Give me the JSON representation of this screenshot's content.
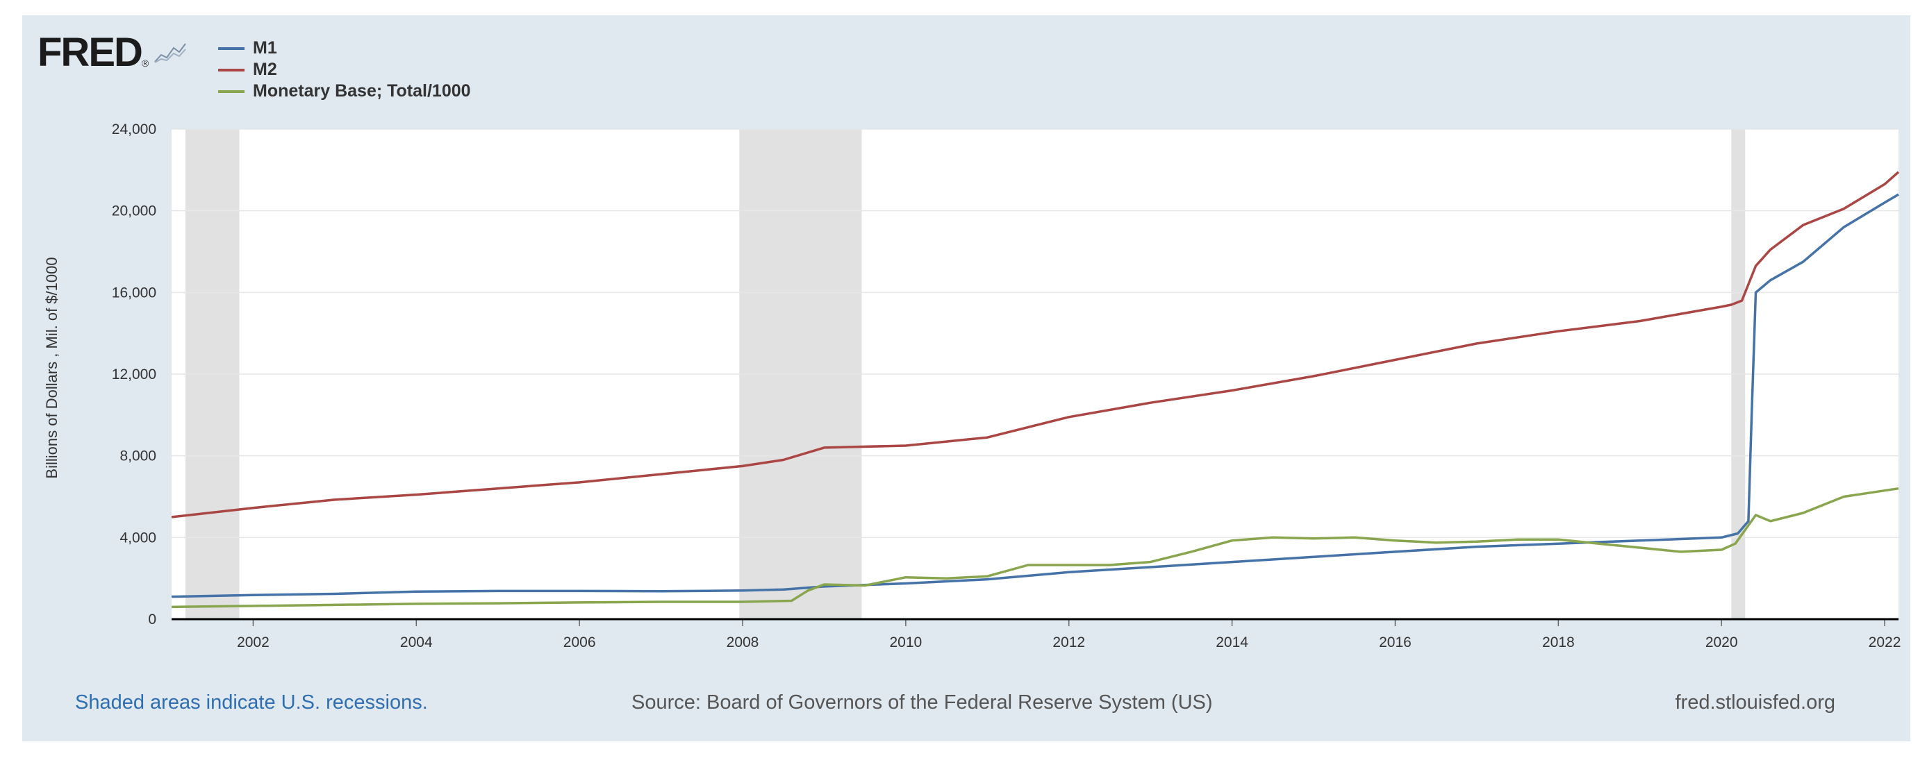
{
  "logo": {
    "text": "FRED",
    "mark": "®"
  },
  "footer": {
    "recession_note": "Shaded areas indicate U.S. recessions.",
    "source": "Source: Board of Governors of the Federal Reserve System (US)",
    "site": "fred.stlouisfed.org"
  },
  "chart_data": {
    "type": "line",
    "title": "",
    "xlabel": "",
    "ylabel": "Billions of Dollars , Mil. of $/1000",
    "xlim": [
      2001.0,
      2022.17
    ],
    "ylim": [
      0,
      24000
    ],
    "yticks": [
      0,
      4000,
      8000,
      12000,
      16000,
      20000,
      24000
    ],
    "ytick_labels": [
      "0",
      "4,000",
      "8,000",
      "12,000",
      "16,000",
      "20,000",
      "24,000"
    ],
    "xticks": [
      2002,
      2004,
      2006,
      2008,
      2010,
      2012,
      2014,
      2016,
      2018,
      2020,
      2022
    ],
    "xtick_labels": [
      "2002",
      "2004",
      "2006",
      "2008",
      "2010",
      "2012",
      "2014",
      "2016",
      "2018",
      "2020",
      "2022"
    ],
    "grid": "horizontal",
    "legend_position": "top-left",
    "recessions": [
      [
        2001.17,
        2001.83
      ],
      [
        2007.96,
        2009.46
      ],
      [
        2020.12,
        2020.29
      ]
    ],
    "series": [
      {
        "name": "M1",
        "color": "#4572a7",
        "x": [
          2001.0,
          2002.0,
          2003.0,
          2004.0,
          2005.0,
          2006.0,
          2007.0,
          2008.0,
          2008.5,
          2009.0,
          2010.0,
          2011.0,
          2012.0,
          2013.0,
          2014.0,
          2015.0,
          2016.0,
          2017.0,
          2018.0,
          2019.0,
          2020.0,
          2020.2,
          2020.33,
          2020.37,
          2020.42,
          2020.6,
          2021.0,
          2021.5,
          2022.0,
          2022.17
        ],
        "values": [
          1100,
          1180,
          1240,
          1350,
          1380,
          1380,
          1370,
          1400,
          1450,
          1600,
          1750,
          1950,
          2300,
          2550,
          2800,
          3050,
          3300,
          3550,
          3700,
          3850,
          4000,
          4200,
          4800,
          10000,
          16000,
          16600,
          17500,
          19200,
          20400,
          20800
        ]
      },
      {
        "name": "M2",
        "color": "#aa4643",
        "x": [
          2001.0,
          2002.0,
          2003.0,
          2004.0,
          2005.0,
          2006.0,
          2007.0,
          2008.0,
          2008.5,
          2009.0,
          2010.0,
          2011.0,
          2012.0,
          2013.0,
          2014.0,
          2015.0,
          2016.0,
          2017.0,
          2018.0,
          2019.0,
          2020.0,
          2020.12,
          2020.25,
          2020.42,
          2020.6,
          2021.0,
          2021.5,
          2022.0,
          2022.17
        ],
        "values": [
          5000,
          5450,
          5850,
          6100,
          6400,
          6700,
          7100,
          7500,
          7800,
          8400,
          8500,
          8900,
          9900,
          10600,
          11200,
          11900,
          12700,
          13500,
          14100,
          14600,
          15300,
          15400,
          15600,
          17300,
          18100,
          19300,
          20100,
          21300,
          21900
        ]
      },
      {
        "name": "Monetary Base; Total/1000",
        "color": "#89a54e",
        "x": [
          2001.0,
          2002.0,
          2003.0,
          2004.0,
          2005.0,
          2006.0,
          2007.0,
          2008.0,
          2008.6,
          2008.8,
          2009.0,
          2009.5,
          2010.0,
          2010.5,
          2011.0,
          2011.5,
          2012.0,
          2012.5,
          2013.0,
          2013.5,
          2014.0,
          2014.5,
          2015.0,
          2015.5,
          2016.0,
          2016.5,
          2017.0,
          2017.5,
          2018.0,
          2018.5,
          2019.0,
          2019.5,
          2020.0,
          2020.17,
          2020.42,
          2020.6,
          2021.0,
          2021.5,
          2022.0,
          2022.17
        ],
        "values": [
          600,
          650,
          700,
          750,
          780,
          820,
          850,
          850,
          900,
          1400,
          1700,
          1650,
          2050,
          2000,
          2100,
          2650,
          2650,
          2650,
          2800,
          3300,
          3850,
          4000,
          3950,
          4000,
          3850,
          3750,
          3800,
          3900,
          3900,
          3700,
          3500,
          3300,
          3400,
          3700,
          5100,
          4800,
          5200,
          6000,
          6300,
          6400
        ]
      }
    ]
  }
}
